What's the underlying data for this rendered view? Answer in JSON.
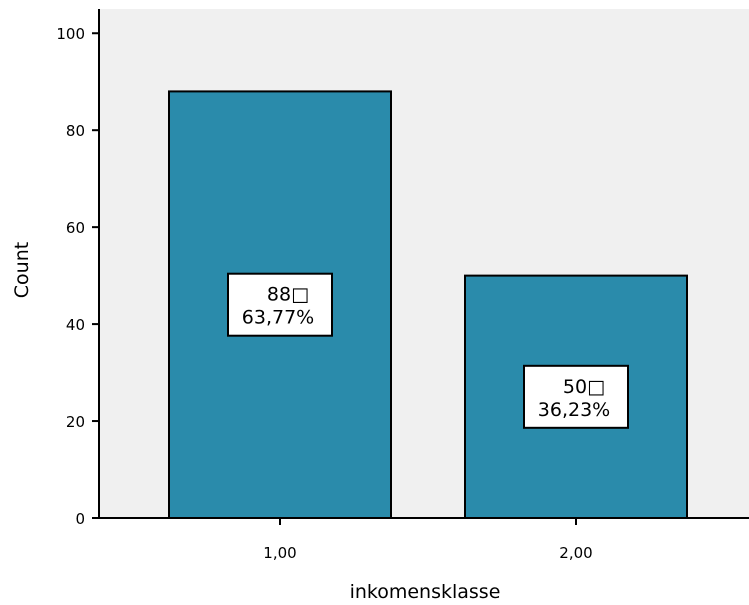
{
  "chart_data": {
    "type": "bar",
    "categories": [
      "1,00",
      "2,00"
    ],
    "values": [
      88,
      50
    ],
    "data_labels": [
      {
        "count": "88□",
        "percent": "63,77%"
      },
      {
        "count": "50□",
        "percent": "36,23%"
      }
    ],
    "xlabel": "inkomensklasse",
    "ylabel": "Count",
    "ylim": [
      0,
      105
    ],
    "yticks": [
      0,
      20,
      40,
      60,
      80,
      100
    ],
    "grid": false,
    "colors": {
      "bar": "#2a8bab",
      "plot_background": "#f0f0f0",
      "label_box": "#ffffff"
    }
  }
}
